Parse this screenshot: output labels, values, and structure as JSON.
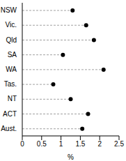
{
  "chart_data": {
    "type": "dot",
    "orientation": "horizontal",
    "categories": [
      "NSW",
      "Vic.",
      "Qld",
      "SA",
      "WA",
      "Tas.",
      "NT",
      "ACT",
      "Aust."
    ],
    "values": [
      1.3,
      1.65,
      1.85,
      1.05,
      2.1,
      0.8,
      1.25,
      1.7,
      1.55
    ],
    "color": "#000000",
    "marker": "circle",
    "line_style": "dashed",
    "x_label": "%",
    "xlim": [
      0,
      2.5
    ],
    "xticks": [
      0,
      0.5,
      1,
      1.5,
      2,
      2.5
    ],
    "grid": false
  }
}
